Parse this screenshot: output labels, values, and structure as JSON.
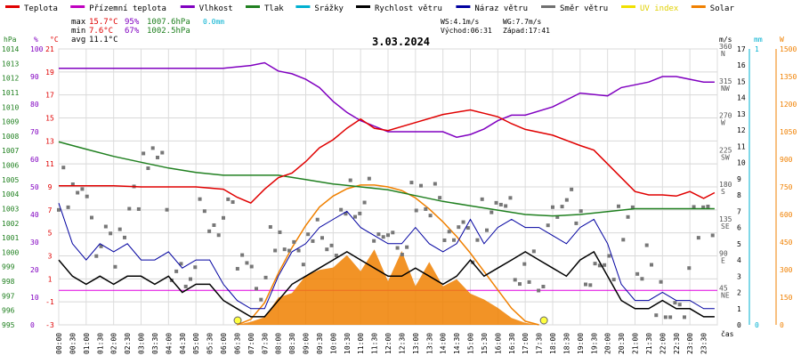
{
  "legend": [
    {
      "label": "Teplota",
      "color": "#e00000"
    },
    {
      "label": "Přízemní teplota",
      "color": "#c000c0"
    },
    {
      "label": "Vlhkost",
      "color": "#8000c0"
    },
    {
      "label": "Tlak",
      "color": "#208020"
    },
    {
      "label": "Srážky",
      "color": "#00b0d0"
    },
    {
      "label": "Rychlost větru",
      "color": "#000000"
    },
    {
      "label": "Náraz větru",
      "color": "#0000a0"
    },
    {
      "label": "Směr větru",
      "color": "#707070"
    },
    {
      "label": "UV index",
      "color": "#f0e000"
    },
    {
      "label": "Solar",
      "color": "#f08000"
    }
  ],
  "stats": {
    "max_label": "max",
    "max_temp": "15.7°C",
    "max_hum": "95%",
    "max_press": "1007.6hPa",
    "rain": "0.0mm",
    "min_label": "min",
    "min_temp": "7.6°C",
    "min_hum": "67%",
    "min_press": "1002.5hPa",
    "avg_label": "avg",
    "avg_temp": "11.1°C"
  },
  "wind_info": {
    "ws": "WS:4.1m/s",
    "wg": "WG:7.7m/s",
    "sunrise": "Východ:06:31",
    "sunset": "Západ:17:41"
  },
  "axis_units": {
    "hpa": "hPa",
    "pct": "%",
    "deg": "°C",
    "ms": "m/s",
    "mm": "mm",
    "w": "W",
    "cas": "čas"
  },
  "chart_data": {
    "type": "line",
    "title": "3.03.2024",
    "x_labels": [
      "00:00",
      "00:30",
      "01:00",
      "01:30",
      "02:00",
      "02:30",
      "03:00",
      "03:30",
      "04:00",
      "04:30",
      "05:00",
      "05:30",
      "06:00",
      "06:30",
      "07:00",
      "07:30",
      "08:00",
      "08:30",
      "09:00",
      "09:30",
      "10:00",
      "10:30",
      "11:00",
      "11:30",
      "12:00",
      "12:30",
      "13:00",
      "13:30",
      "14:00",
      "14:30",
      "15:00",
      "15:30",
      "16:00",
      "16:30",
      "17:00",
      "17:30",
      "18:00",
      "18:30",
      "19:00",
      "19:30",
      "20:00",
      "20:30",
      "21:00",
      "21:30",
      "22:00",
      "22:30",
      "23:00",
      "23:30"
    ],
    "axes": {
      "pressure_hpa": {
        "range": [
          995,
          1014
        ],
        "ticks": [
          "995",
          "996",
          "997",
          "998",
          "999",
          "1000",
          "1001",
          "1002",
          "1003",
          "1004",
          "1005",
          "1006",
          "1007",
          "1008",
          "1009",
          "1010",
          "1011",
          "1012",
          "1013",
          "1014"
        ]
      },
      "humidity_pct": {
        "range": [
          0,
          100
        ],
        "ticks": [
          "0",
          "10",
          "20",
          "30",
          "40",
          "50",
          "60",
          "70",
          "80",
          "90",
          "100"
        ]
      },
      "temperature_c": {
        "range": [
          -3,
          21
        ],
        "ticks": [
          "-3",
          "-1",
          "1",
          "3",
          "5",
          "7",
          "9",
          "11",
          "13",
          "15",
          "17",
          "19",
          "21"
        ]
      },
      "wind_dir": {
        "range": [
          0,
          360
        ],
        "ticks": [
          [
            "NE",
            "45"
          ],
          [
            "E",
            "90"
          ],
          [
            "SE",
            "135"
          ],
          [
            "S",
            "180"
          ],
          [
            "SW",
            "225"
          ],
          [
            "W",
            "270"
          ],
          [
            "NW",
            "315"
          ],
          [
            "N",
            "360"
          ]
        ]
      },
      "wind_ms": {
        "range": [
          0,
          17
        ],
        "ticks": [
          "0",
          "1",
          "2",
          "3",
          "4",
          "5",
          "6",
          "7",
          "8",
          "9",
          "10",
          "11",
          "12",
          "13",
          "14",
          "15",
          "16",
          "17"
        ]
      },
      "rain_mm": {
        "range": [
          0,
          1
        ],
        "ticks": [
          "0",
          "1"
        ]
      },
      "solar_w": {
        "range": [
          0,
          1500
        ],
        "ticks": [
          "0",
          "150",
          "300",
          "450",
          "600",
          "750",
          "900",
          "1050",
          "1200",
          "1350",
          "1500"
        ]
      }
    },
    "series": [
      {
        "name": "Teplota",
        "axis": "temperature_c",
        "x": [
          0,
          1,
          2,
          3,
          4,
          5,
          6,
          6.5,
          7,
          7.5,
          8,
          8.5,
          9,
          9.5,
          10,
          10.5,
          11,
          11.5,
          12,
          13,
          14,
          15,
          15.5,
          16,
          16.5,
          17,
          18,
          19,
          19.5,
          20,
          20.5,
          21,
          21.5,
          22,
          22.5,
          23,
          23.5,
          23.9
        ],
        "y": [
          9.1,
          9.1,
          9.1,
          9.0,
          9.0,
          9.0,
          8.8,
          8.1,
          7.6,
          8.8,
          9.8,
          10.2,
          11.2,
          12.4,
          13.1,
          14.1,
          14.9,
          14.1,
          13.9,
          14.6,
          15.3,
          15.7,
          15.4,
          15.1,
          14.5,
          14.0,
          13.5,
          12.6,
          12.2,
          11.0,
          9.8,
          8.6,
          8.3,
          8.3,
          8.2,
          8.6,
          8.0,
          8.5
        ]
      },
      {
        "name": "Vlhkost",
        "axis": "humidity_pct",
        "x": [
          0,
          1,
          2,
          3,
          4,
          5,
          6,
          7,
          7.5,
          8,
          8.5,
          9,
          9.5,
          10,
          10.5,
          11,
          11.5,
          12,
          13,
          14,
          14.5,
          15,
          15.5,
          16,
          16.5,
          17,
          18,
          19,
          20,
          20.5,
          21,
          21.5,
          22,
          22.5,
          23,
          23.5,
          23.9
        ],
        "y": [
          93,
          93,
          93,
          93,
          93,
          93,
          93,
          94,
          95,
          92,
          91,
          89,
          86,
          81,
          77,
          74,
          72,
          70,
          70,
          70,
          68,
          69,
          71,
          74,
          76,
          76,
          79,
          84,
          83,
          86,
          87,
          88,
          90,
          90,
          89,
          88,
          88
        ]
      },
      {
        "name": "Tlak",
        "axis": "pressure_hpa",
        "x": [
          0,
          1,
          2,
          3,
          4,
          5,
          6,
          7,
          8,
          9,
          10,
          11,
          12,
          13,
          14,
          15,
          16,
          17,
          18,
          19,
          20,
          21,
          22,
          23,
          23.9
        ],
        "y": [
          1007.6,
          1007.1,
          1006.6,
          1006.2,
          1005.8,
          1005.5,
          1005.3,
          1005.3,
          1005.3,
          1005.0,
          1004.7,
          1004.5,
          1004.3,
          1003.9,
          1003.5,
          1003.2,
          1002.9,
          1002.6,
          1002.5,
          1002.6,
          1002.8,
          1003.0,
          1003.0,
          1003.0,
          1003.0
        ]
      },
      {
        "name": "Rychlost větru",
        "axis": "wind_ms",
        "x": [
          0,
          0.5,
          1,
          1.5,
          2,
          2.5,
          3,
          3.5,
          4,
          4.5,
          5,
          5.5,
          6,
          6.5,
          7,
          7.5,
          8,
          8.5,
          9,
          9.5,
          10,
          10.5,
          11,
          11.5,
          12,
          12.5,
          13,
          13.5,
          14,
          14.5,
          15,
          15.5,
          16,
          16.5,
          17,
          17.5,
          18,
          18.5,
          19,
          19.5,
          20,
          20.5,
          21,
          21.5,
          22,
          22.5,
          23,
          23.5,
          23.9
        ],
        "y": [
          4,
          3,
          2.5,
          3,
          2.5,
          3,
          3,
          2.5,
          3,
          2,
          2.5,
          2.5,
          1.5,
          1,
          0.5,
          0.5,
          1.5,
          2.5,
          3,
          3.5,
          4,
          4.5,
          4,
          3.5,
          3,
          3,
          3.5,
          3,
          2.5,
          3,
          4,
          3,
          3.5,
          4,
          4.5,
          4,
          3.5,
          3,
          4,
          4.5,
          3,
          1.5,
          1,
          1,
          1.5,
          1,
          1,
          0.5,
          0.5
        ]
      },
      {
        "name": "Náraz větru",
        "axis": "wind_ms",
        "x": [
          0,
          0.5,
          1,
          1.5,
          2,
          2.5,
          3,
          3.5,
          4,
          4.5,
          5,
          5.5,
          6,
          6.5,
          7,
          7.5,
          8,
          8.5,
          9,
          9.5,
          10,
          10.5,
          11,
          11.5,
          12,
          12.5,
          13,
          13.5,
          14,
          14.5,
          15,
          15.5,
          16,
          16.5,
          17,
          17.5,
          18,
          18.5,
          19,
          19.5,
          20,
          20.5,
          21,
          21.5,
          22,
          22.5,
          23,
          23.5,
          23.9
        ],
        "y": [
          7.5,
          5,
          4,
          5,
          4.5,
          5,
          4,
          4,
          4.5,
          3.5,
          4,
          4,
          2.5,
          1.5,
          1,
          1,
          3,
          4.5,
          5,
          6,
          6.5,
          7,
          6,
          5.5,
          5,
          5,
          6,
          5,
          4.5,
          5,
          6.5,
          5,
          6,
          6.5,
          6,
          6,
          5.5,
          5,
          6,
          6.5,
          5,
          2.5,
          1.5,
          1.5,
          2,
          1.5,
          1.5,
          1,
          1
        ]
      },
      {
        "name": "Směr větru",
        "axis": "wind_dir",
        "x": [
          0,
          1,
          2,
          3,
          4,
          5,
          6,
          7,
          8,
          9,
          10,
          11,
          12,
          13,
          14,
          15,
          16,
          17,
          18,
          19,
          20,
          21,
          22,
          23,
          23.9
        ],
        "y": [
          150,
          130,
          125,
          185,
          110,
          105,
          105,
          80,
          90,
          145,
          140,
          155,
          150,
          140,
          165,
          115,
          110,
          100,
          120,
          110,
          95,
          60,
          40,
          105,
          95
        ]
      },
      {
        "name": "Solar",
        "axis": "solar_w",
        "x": [
          6.5,
          7,
          7.5,
          8,
          8.5,
          9,
          9.5,
          10,
          10.5,
          11,
          11.5,
          12,
          12.5,
          13,
          13.5,
          14,
          14.5,
          15,
          15.5,
          16,
          16.5,
          17,
          17.5
        ],
        "y": [
          0,
          30,
          120,
          280,
          420,
          540,
          640,
          700,
          740,
          760,
          760,
          750,
          730,
          690,
          630,
          560,
          480,
          390,
          290,
          190,
          90,
          20,
          0
        ]
      }
    ]
  }
}
